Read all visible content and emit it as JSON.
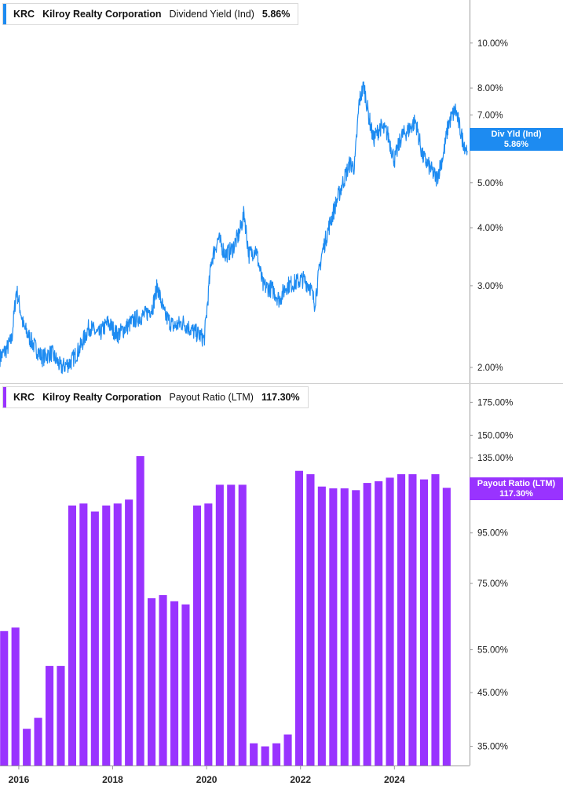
{
  "colors": {
    "yield": "#1d8bf1",
    "payout": "#9933ff",
    "grid": "#cfcfcf",
    "axis_text": "#222222"
  },
  "yield_panel": {
    "legend": {
      "ticker": "KRC",
      "company": "Kilroy Realty Corporation",
      "metric": "Dividend Yield (Ind)",
      "value": "5.86%"
    },
    "tag": {
      "label": "Div Yld (Ind)",
      "value": "5.86%"
    }
  },
  "payout_panel": {
    "legend": {
      "ticker": "KRC",
      "company": "Kilroy Realty Corporation",
      "metric": "Payout Ratio (LTM)",
      "value": "117.30%"
    },
    "tag": {
      "label": "Payout Ratio (LTM)",
      "value": "117.30%"
    }
  },
  "chart_data": [
    {
      "type": "line",
      "series": [
        {
          "name": "Dividend Yield (Ind)",
          "points": [
            [
              2015.6,
              2.1
            ],
            [
              2015.75,
              2.2
            ],
            [
              2015.85,
              2.3
            ],
            [
              2015.95,
              2.95
            ],
            [
              2016.1,
              2.45
            ],
            [
              2016.3,
              2.25
            ],
            [
              2016.5,
              2.1
            ],
            [
              2016.7,
              2.15
            ],
            [
              2016.9,
              2.0
            ],
            [
              2017.1,
              2.05
            ],
            [
              2017.3,
              2.2
            ],
            [
              2017.5,
              2.45
            ],
            [
              2017.7,
              2.35
            ],
            [
              2017.9,
              2.5
            ],
            [
              2018.1,
              2.35
            ],
            [
              2018.3,
              2.45
            ],
            [
              2018.5,
              2.55
            ],
            [
              2018.7,
              2.6
            ],
            [
              2018.85,
              2.7
            ],
            [
              2018.95,
              3.0
            ],
            [
              2019.1,
              2.6
            ],
            [
              2019.3,
              2.45
            ],
            [
              2019.5,
              2.5
            ],
            [
              2019.7,
              2.4
            ],
            [
              2019.85,
              2.35
            ],
            [
              2019.95,
              2.3
            ],
            [
              2020.1,
              3.4
            ],
            [
              2020.25,
              3.8
            ],
            [
              2020.4,
              3.5
            ],
            [
              2020.55,
              3.6
            ],
            [
              2020.7,
              3.9
            ],
            [
              2020.8,
              4.3
            ],
            [
              2020.9,
              3.5
            ],
            [
              2021.05,
              3.6
            ],
            [
              2021.2,
              3.0
            ],
            [
              2021.4,
              2.95
            ],
            [
              2021.55,
              2.8
            ],
            [
              2021.7,
              3.0
            ],
            [
              2021.9,
              3.05
            ],
            [
              2022.05,
              3.1
            ],
            [
              2022.2,
              3.0
            ],
            [
              2022.3,
              2.75
            ],
            [
              2022.45,
              3.5
            ],
            [
              2022.6,
              4.0
            ],
            [
              2022.75,
              4.5
            ],
            [
              2022.9,
              5.0
            ],
            [
              2023.05,
              5.5
            ],
            [
              2023.15,
              5.4
            ],
            [
              2023.25,
              7.5
            ],
            [
              2023.35,
              8.1
            ],
            [
              2023.45,
              7.0
            ],
            [
              2023.55,
              6.2
            ],
            [
              2023.7,
              6.6
            ],
            [
              2023.85,
              6.4
            ],
            [
              2024.0,
              5.6
            ],
            [
              2024.15,
              6.3
            ],
            [
              2024.3,
              6.5
            ],
            [
              2024.45,
              6.8
            ],
            [
              2024.6,
              5.7
            ],
            [
              2024.75,
              5.4
            ],
            [
              2024.9,
              5.1
            ],
            [
              2025.05,
              5.8
            ],
            [
              2025.15,
              6.7
            ],
            [
              2025.3,
              7.2
            ],
            [
              2025.45,
              6.2
            ],
            [
              2025.55,
              5.86
            ]
          ]
        }
      ],
      "yscale": "log",
      "ylim": [
        1.85,
        12
      ],
      "xlim": [
        2015.6,
        2025.6
      ],
      "yticks": [
        "10.00%",
        "8.00%",
        "7.00%",
        "5.00%",
        "4.00%",
        "3.00%",
        "2.00%"
      ],
      "ytick_values": [
        10,
        8,
        7,
        5,
        4,
        3,
        2
      ],
      "grid": false
    },
    {
      "type": "bar",
      "series": [
        {
          "name": "Payout Ratio (LTM)",
          "values": [
            60,
            61,
            38,
            40,
            51,
            51,
            108,
            109,
            105,
            108,
            109,
            111,
            136,
            70,
            71,
            69,
            68,
            108,
            109,
            119,
            119,
            119,
            35.5,
            35,
            35.5,
            37,
            127,
            125,
            118,
            117,
            117,
            116,
            120,
            121,
            123,
            125,
            125,
            122,
            125,
            117.3
          ]
        }
      ],
      "yscale": "log",
      "ylim": [
        32,
        190
      ],
      "xlim": [
        2015.6,
        2025.6
      ],
      "yticks": [
        "175.00%",
        "150.00%",
        "135.00%",
        "95.00%",
        "75.00%",
        "55.00%",
        "45.00%",
        "35.00%"
      ],
      "ytick_values": [
        175,
        150,
        135,
        95,
        75,
        55,
        45,
        35
      ],
      "xticks": [
        "2016",
        "2018",
        "2020",
        "2022",
        "2024"
      ],
      "xtick_values": [
        2016,
        2018,
        2020,
        2022,
        2024
      ],
      "grid": false
    }
  ]
}
